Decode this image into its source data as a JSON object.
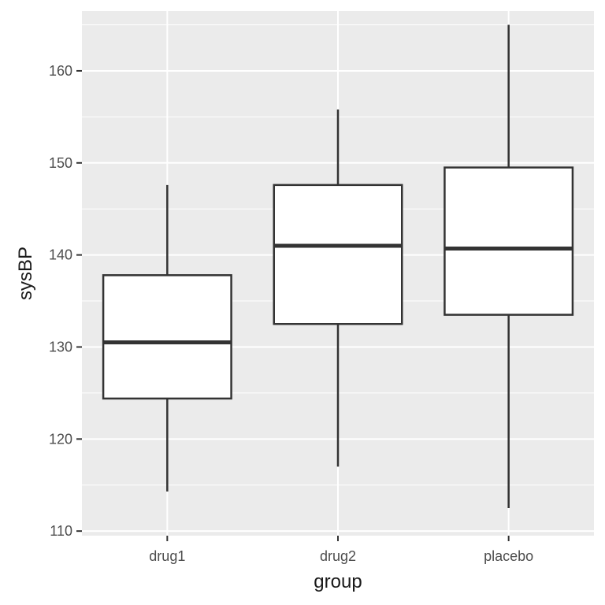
{
  "chart_data": {
    "type": "box",
    "xlabel": "group",
    "ylabel": "sysBP",
    "categories": [
      "drug1",
      "drug2",
      "placebo"
    ],
    "boxes": [
      {
        "category": "drug1",
        "whisker_low": 114.3,
        "q1": 124.4,
        "median": 130.5,
        "q3": 137.8,
        "whisker_high": 147.6
      },
      {
        "category": "drug2",
        "whisker_low": 117.0,
        "q1": 132.5,
        "median": 141.0,
        "q3": 147.6,
        "whisker_high": 155.8
      },
      {
        "category": "placebo",
        "whisker_low": 112.5,
        "q1": 133.5,
        "median": 140.7,
        "q3": 149.5,
        "whisker_high": 165.0
      }
    ],
    "ylim": [
      109.5,
      166.5
    ],
    "y_ticks": [
      110,
      120,
      130,
      140,
      150,
      160
    ],
    "grid": true,
    "colors": {
      "panel": "#ebebeb",
      "grid": "#ffffff",
      "box_fill": "#ffffff",
      "box_line": "#333333"
    }
  }
}
